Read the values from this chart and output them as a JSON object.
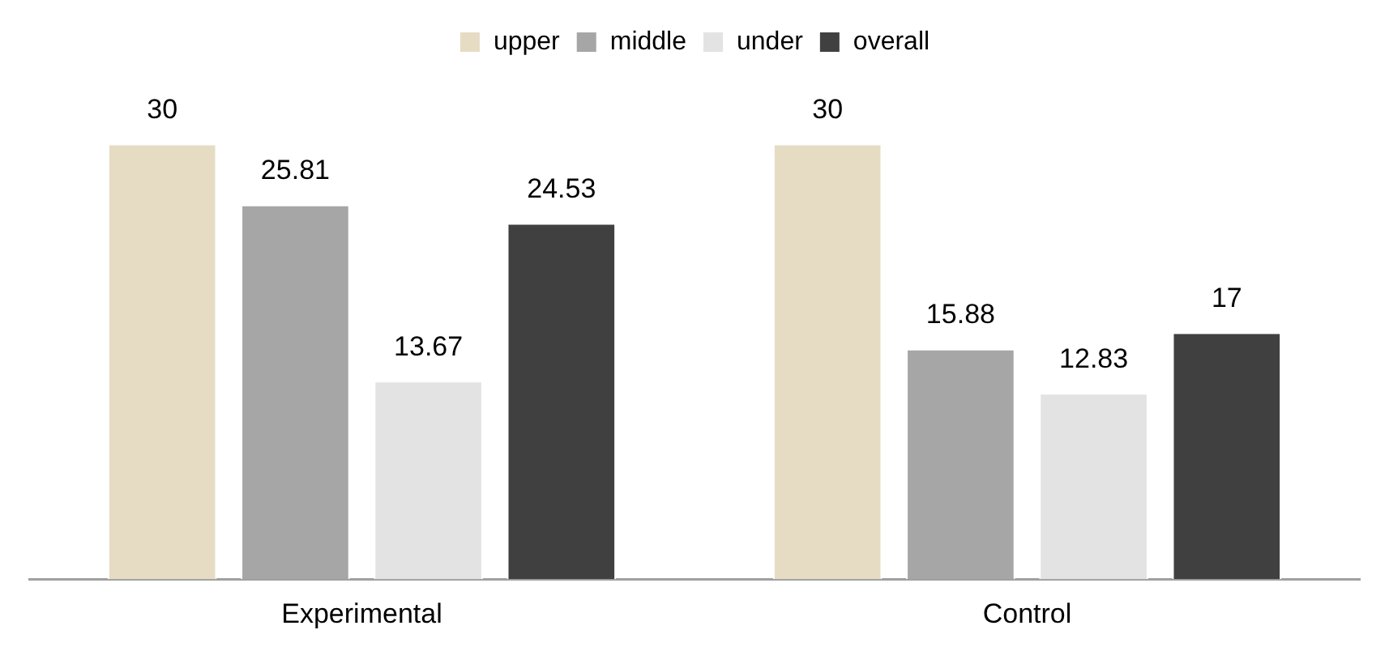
{
  "chart_data": {
    "type": "bar",
    "categories": [
      "Experimental",
      "Control"
    ],
    "series": [
      {
        "name": "upper",
        "color": "#e6dcc3",
        "values": [
          30,
          30
        ]
      },
      {
        "name": "middle",
        "color": "#a6a6a6",
        "values": [
          25.81,
          15.88
        ]
      },
      {
        "name": "under",
        "color": "#e3e3e3",
        "values": [
          13.67,
          12.83
        ]
      },
      {
        "name": "overall",
        "color": "#404040",
        "values": [
          24.53,
          17
        ]
      }
    ],
    "data_labels": true,
    "legend": "top",
    "grid": false
  }
}
